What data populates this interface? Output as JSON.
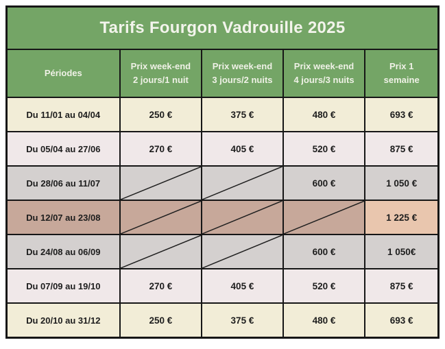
{
  "title": "Tarifs Fourgon Vadrouille 2025",
  "colors": {
    "green": "#74a566",
    "border": "#161616",
    "cream": "#f2edd7",
    "blush": "#f0e8e9",
    "gray": "#d4d0cf",
    "tan": "#c7a89a",
    "peach": "#e9c6ae",
    "title_text": "#f3f4ec",
    "header_text": "#eff1e6",
    "body_text": "#1d1d1d"
  },
  "table": {
    "header": [
      {
        "key": "periodes",
        "lines": [
          "Périodes"
        ]
      },
      {
        "key": "we-2j-1n",
        "lines": [
          "Prix week-end",
          "2 jours/1 nuit"
        ]
      },
      {
        "key": "we-3j-2n",
        "lines": [
          "Prix week-end",
          "3 jours/2 nuits"
        ]
      },
      {
        "key": "we-4j-3n",
        "lines": [
          "Prix week-end",
          "4 jours/3 nuits"
        ]
      },
      {
        "key": "semaine",
        "lines": [
          "Prix 1",
          "semaine"
        ]
      }
    ],
    "rows": [
      {
        "period": "Du 11/01 au 04/04",
        "bg": "cream",
        "cells": [
          {
            "text": "250 €"
          },
          {
            "text": "375 €"
          },
          {
            "text": "480 €"
          },
          {
            "text": "693 €"
          }
        ]
      },
      {
        "period": "Du 05/04 au 27/06",
        "bg": "blush",
        "cells": [
          {
            "text": "270 €"
          },
          {
            "text": "405 €"
          },
          {
            "text": "520 €"
          },
          {
            "text": "875 €"
          }
        ]
      },
      {
        "period": "Du 28/06 au 11/07",
        "bg": "gray",
        "cells": [
          {
            "slash": true
          },
          {
            "slash": true
          },
          {
            "text": "600 €"
          },
          {
            "text": "1 050 €"
          }
        ]
      },
      {
        "period": "Du 12/07 au 23/08",
        "bg": "tan",
        "cells": [
          {
            "slash": true
          },
          {
            "slash": true
          },
          {
            "slash": true
          },
          {
            "text": "1 225 €",
            "bg": "peach"
          }
        ]
      },
      {
        "period": "Du 24/08 au 06/09",
        "bg": "gray",
        "cells": [
          {
            "slash": true
          },
          {
            "slash": true
          },
          {
            "text": "600 €"
          },
          {
            "text": "1 050€"
          }
        ]
      },
      {
        "period": "Du 07/09 au 19/10",
        "bg": "blush",
        "cells": [
          {
            "text": "270 €"
          },
          {
            "text": "405 €"
          },
          {
            "text": "520 €"
          },
          {
            "text": "875 €"
          }
        ]
      },
      {
        "period": "Du 20/10 au 31/12",
        "bg": "cream",
        "cells": [
          {
            "text": "250 €"
          },
          {
            "text": "375 €"
          },
          {
            "text": "480 €"
          },
          {
            "text": "693 €"
          }
        ]
      }
    ]
  },
  "chart_data": {
    "type": "table",
    "title": "Tarifs Fourgon Vadrouille 2025",
    "columns": [
      "Périodes",
      "Prix week-end 2 jours/1 nuit",
      "Prix week-end 3 jours/2 nuits",
      "Prix week-end 4 jours/3 nuits",
      "Prix 1 semaine"
    ],
    "rows": [
      [
        "Du 11/01 au 04/04",
        "250 €",
        "375 €",
        "480 €",
        "693 €"
      ],
      [
        "Du 05/04 au 27/06",
        "270 €",
        "405 €",
        "520 €",
        "875 €"
      ],
      [
        "Du 28/06 au 11/07",
        null,
        null,
        "600 €",
        "1 050 €"
      ],
      [
        "Du 12/07 au 23/08",
        null,
        null,
        null,
        "1 225 €"
      ],
      [
        "Du 24/08 au 06/09",
        null,
        null,
        "600 €",
        "1 050€"
      ],
      [
        "Du 07/09 au 19/10",
        "270 €",
        "405 €",
        "520 €",
        "875 €"
      ],
      [
        "Du 20/10 au 31/12",
        "250 €",
        "375 €",
        "480 €",
        "693 €"
      ]
    ],
    "unavailable_marker": "diagonal-slash"
  }
}
